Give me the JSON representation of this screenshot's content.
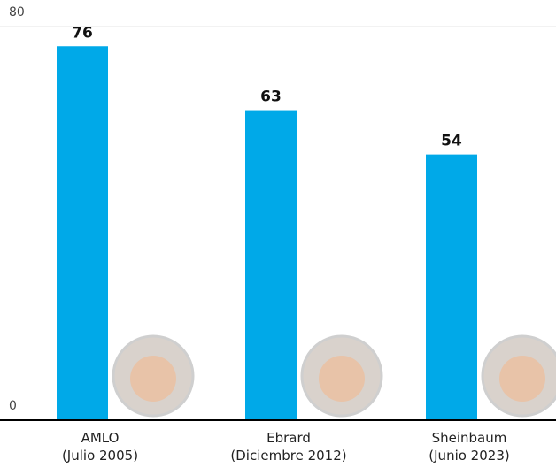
{
  "chart_data": {
    "type": "bar",
    "categories": [
      "AMLO",
      "Ebrard",
      "Sheinbaum"
    ],
    "sublabels": [
      "(Julio 2005)",
      "(Diciembre 2012)",
      "(Junio 2023)"
    ],
    "values": [
      76,
      63,
      54
    ],
    "color": "#00a9e8",
    "ylim": [
      0,
      80
    ],
    "yticks": [
      0,
      80
    ],
    "grid": true
  }
}
